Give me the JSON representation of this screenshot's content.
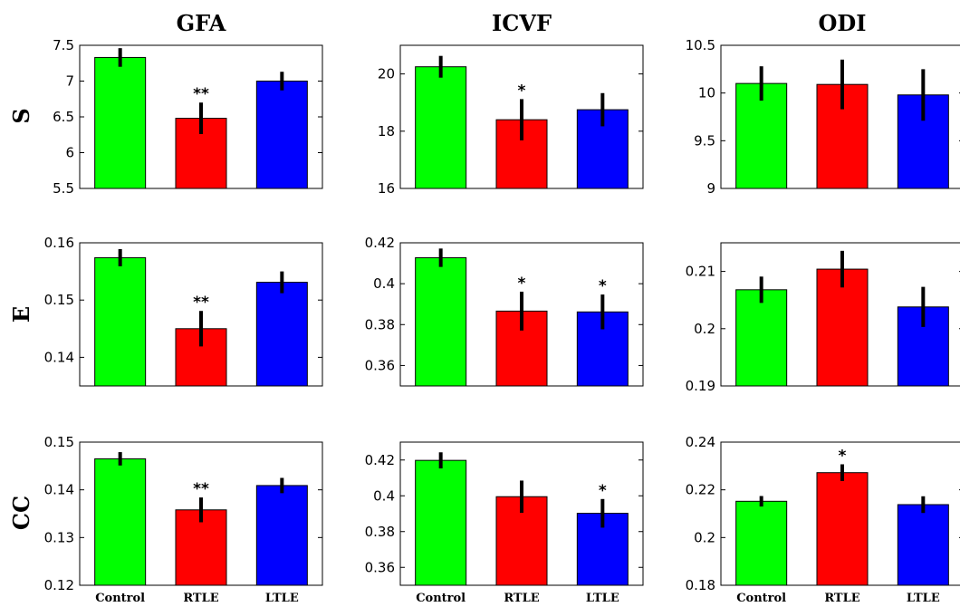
{
  "chart_data": {
    "type": "bar",
    "columns": [
      "GFA",
      "ICVF",
      "ODI"
    ],
    "rows": [
      "S",
      "E",
      "CC"
    ],
    "categories": [
      "Control",
      "RTLE",
      "LTLE"
    ],
    "colors": [
      "#00ff00",
      "#ff0000",
      "#0000ff"
    ],
    "panels": [
      {
        "row": "S",
        "column": "GFA",
        "ylim": [
          5.5,
          7.5
        ],
        "yticks": [
          "5.5",
          "6",
          "6.5",
          "7",
          "7.5"
        ],
        "values": [
          7.33,
          6.48,
          7.0
        ],
        "errors": [
          0.13,
          0.22,
          0.13
        ],
        "significance": [
          "",
          "**",
          ""
        ]
      },
      {
        "row": "S",
        "column": "ICVF",
        "ylim": [
          16,
          21
        ],
        "yticks": [
          "16",
          "18",
          "20"
        ],
        "values": [
          20.25,
          18.4,
          18.75
        ],
        "errors": [
          0.38,
          0.72,
          0.58
        ],
        "significance": [
          "",
          "*",
          ""
        ]
      },
      {
        "row": "S",
        "column": "ODI",
        "ylim": [
          9,
          10.5
        ],
        "yticks": [
          "9",
          "9.5",
          "10",
          "10.5"
        ],
        "values": [
          10.1,
          10.09,
          9.98
        ],
        "errors": [
          0.18,
          0.26,
          0.27
        ],
        "significance": [
          "",
          "",
          ""
        ]
      },
      {
        "row": "E",
        "column": "GFA",
        "ylim": [
          0.135,
          0.16
        ],
        "yticks": [
          "0.14",
          "0.15",
          "0.16"
        ],
        "values": [
          0.1574,
          0.145,
          0.1531
        ],
        "errors": [
          0.0015,
          0.0031,
          0.0019
        ],
        "significance": [
          "",
          "**",
          ""
        ]
      },
      {
        "row": "E",
        "column": "ICVF",
        "ylim": [
          0.35,
          0.42
        ],
        "yticks": [
          "0.36",
          "0.38",
          "0.4",
          "0.42"
        ],
        "values": [
          0.4127,
          0.3866,
          0.3862
        ],
        "errors": [
          0.0045,
          0.0095,
          0.0085
        ],
        "significance": [
          "",
          "*",
          "*"
        ]
      },
      {
        "row": "E",
        "column": "ODI",
        "ylim": [
          0.19,
          0.215
        ],
        "yticks": [
          "0.19",
          "0.2",
          "0.21"
        ],
        "values": [
          0.2068,
          0.2104,
          0.2038
        ],
        "errors": [
          0.0023,
          0.0032,
          0.0035
        ],
        "significance": [
          "",
          "",
          ""
        ]
      },
      {
        "row": "CC",
        "column": "GFA",
        "ylim": [
          0.12,
          0.15
        ],
        "yticks": [
          "0.12",
          "0.13",
          "0.14",
          "0.15"
        ],
        "values": [
          0.1465,
          0.1358,
          0.1409
        ],
        "errors": [
          0.0014,
          0.0026,
          0.0016
        ],
        "significance": [
          "",
          "**",
          ""
        ]
      },
      {
        "row": "CC",
        "column": "ICVF",
        "ylim": [
          0.35,
          0.43
        ],
        "yticks": [
          "0.36",
          "0.38",
          "0.4",
          "0.42"
        ],
        "values": [
          0.4198,
          0.3995,
          0.3902
        ],
        "errors": [
          0.0045,
          0.009,
          0.008
        ],
        "significance": [
          "",
          "",
          "*"
        ]
      },
      {
        "row": "CC",
        "column": "ODI",
        "ylim": [
          0.18,
          0.24
        ],
        "yticks": [
          "0.18",
          "0.2",
          "0.22",
          "0.24"
        ],
        "values": [
          0.2152,
          0.2272,
          0.2138
        ],
        "errors": [
          0.0022,
          0.0035,
          0.0035
        ],
        "significance": [
          "",
          "*",
          ""
        ]
      }
    ]
  }
}
